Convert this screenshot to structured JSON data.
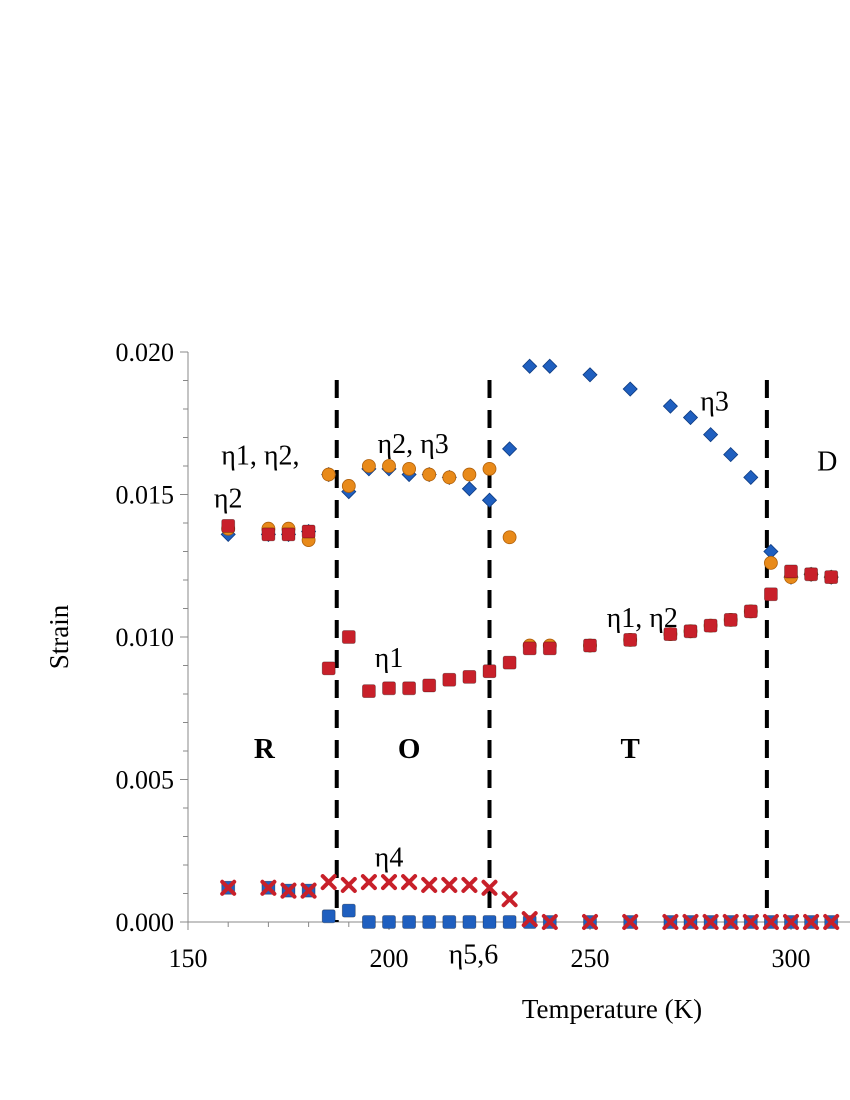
{
  "chart_data": {
    "type": "scatter",
    "xlabel": "Temperature (K)",
    "ylabel": "Strain",
    "xlim": [
      150,
      310
    ],
    "ylim": [
      0,
      0.02
    ],
    "x_ticks": [
      "150",
      "200",
      "250",
      "300"
    ],
    "y_ticks": [
      "0.000",
      "0.005",
      "0.010",
      "0.015",
      "0.020"
    ],
    "grid": false,
    "legend": "none",
    "phase_boundaries": [
      187,
      225,
      294
    ],
    "series": [
      {
        "marker": "diamond",
        "color": "#1f5fbf",
        "points": [
          [
            160,
            0.0136
          ],
          [
            170,
            0.0136
          ],
          [
            175,
            0.0136
          ],
          [
            180,
            0.0137
          ],
          [
            185,
            0.0157
          ],
          [
            190,
            0.0151
          ],
          [
            195,
            0.0159
          ],
          [
            200,
            0.0159
          ],
          [
            205,
            0.0157
          ],
          [
            210,
            0.0157
          ],
          [
            215,
            0.0156
          ],
          [
            220,
            0.0152
          ],
          [
            225,
            0.0148
          ],
          [
            230,
            0.0166
          ],
          [
            235,
            0.0195
          ],
          [
            240,
            0.0195
          ],
          [
            250,
            0.0192
          ],
          [
            260,
            0.0187
          ],
          [
            270,
            0.0181
          ],
          [
            275,
            0.0177
          ],
          [
            280,
            0.0171
          ],
          [
            285,
            0.0164
          ],
          [
            290,
            0.0156
          ],
          [
            295,
            0.013
          ],
          [
            300,
            0.0121
          ],
          [
            305,
            0.0122
          ],
          [
            310,
            0.0121
          ]
        ]
      },
      {
        "marker": "circle",
        "color": "#e88a1a",
        "points": [
          [
            160,
            0.0138
          ],
          [
            170,
            0.0138
          ],
          [
            175,
            0.0138
          ],
          [
            180,
            0.0134
          ],
          [
            185,
            0.0157
          ],
          [
            190,
            0.0153
          ],
          [
            195,
            0.016
          ],
          [
            200,
            0.016
          ],
          [
            205,
            0.0159
          ],
          [
            210,
            0.0157
          ],
          [
            215,
            0.0156
          ],
          [
            220,
            0.0157
          ],
          [
            225,
            0.0159
          ],
          [
            230,
            0.0135
          ],
          [
            235,
            0.0097
          ],
          [
            240,
            0.0097
          ],
          [
            250,
            0.0097
          ],
          [
            260,
            0.0099
          ],
          [
            270,
            0.0101
          ],
          [
            275,
            0.0102
          ],
          [
            280,
            0.0104
          ],
          [
            285,
            0.0106
          ],
          [
            290,
            0.0109
          ],
          [
            295,
            0.0126
          ],
          [
            300,
            0.0121
          ],
          [
            305,
            0.0122
          ],
          [
            310,
            0.0121
          ]
        ]
      },
      {
        "marker": "square",
        "color": "#c8202a",
        "points": [
          [
            160,
            0.0139
          ],
          [
            170,
            0.0136
          ],
          [
            175,
            0.0136
          ],
          [
            180,
            0.0137
          ],
          [
            185,
            0.0089
          ],
          [
            190,
            0.01
          ],
          [
            195,
            0.0081
          ],
          [
            200,
            0.0082
          ],
          [
            205,
            0.0082
          ],
          [
            210,
            0.0083
          ],
          [
            215,
            0.0085
          ],
          [
            220,
            0.0086
          ],
          [
            225,
            0.0088
          ],
          [
            230,
            0.0091
          ],
          [
            235,
            0.0096
          ],
          [
            240,
            0.0096
          ],
          [
            250,
            0.0097
          ],
          [
            260,
            0.0099
          ],
          [
            270,
            0.0101
          ],
          [
            275,
            0.0102
          ],
          [
            280,
            0.0104
          ],
          [
            285,
            0.0106
          ],
          [
            290,
            0.0109
          ],
          [
            295,
            0.0115
          ],
          [
            300,
            0.0123
          ],
          [
            305,
            0.0122
          ],
          [
            310,
            0.0121
          ]
        ]
      },
      {
        "marker": "x",
        "color": "#c8202a",
        "points": [
          [
            160,
            0.0012
          ],
          [
            170,
            0.0012
          ],
          [
            175,
            0.0011
          ],
          [
            180,
            0.0011
          ],
          [
            185,
            0.0014
          ],
          [
            190,
            0.0013
          ],
          [
            195,
            0.0014
          ],
          [
            200,
            0.0014
          ],
          [
            205,
            0.0014
          ],
          [
            210,
            0.0013
          ],
          [
            215,
            0.0013
          ],
          [
            220,
            0.0013
          ],
          [
            225,
            0.0012
          ],
          [
            230,
            0.0008
          ],
          [
            235,
            0.0001
          ],
          [
            240,
            0.0
          ],
          [
            250,
            0.0
          ],
          [
            260,
            0.0
          ],
          [
            270,
            0.0
          ],
          [
            275,
            0.0
          ],
          [
            280,
            0.0
          ],
          [
            285,
            0.0
          ],
          [
            290,
            0.0
          ],
          [
            295,
            0.0
          ],
          [
            300,
            0.0
          ],
          [
            305,
            0.0
          ],
          [
            310,
            0.0
          ]
        ]
      },
      {
        "marker": "square",
        "color": "#1f5fbf",
        "points": [
          [
            160,
            0.0012
          ],
          [
            170,
            0.0012
          ],
          [
            175,
            0.0011
          ],
          [
            180,
            0.0011
          ],
          [
            185,
            0.0002
          ],
          [
            190,
            0.0004
          ],
          [
            195,
            0.0
          ],
          [
            200,
            0.0
          ],
          [
            205,
            0.0
          ],
          [
            210,
            0.0
          ],
          [
            215,
            0.0
          ],
          [
            220,
            0.0
          ],
          [
            225,
            0.0
          ],
          [
            230,
            0.0
          ],
          [
            235,
            0.0
          ],
          [
            240,
            0.0
          ],
          [
            250,
            0.0
          ],
          [
            260,
            0.0
          ],
          [
            270,
            0.0
          ],
          [
            275,
            0.0
          ],
          [
            280,
            0.0
          ],
          [
            285,
            0.0
          ],
          [
            290,
            0.0
          ],
          [
            295,
            0.0
          ],
          [
            300,
            0.0
          ],
          [
            305,
            0.0
          ],
          [
            310,
            0.0
          ]
        ]
      }
    ],
    "annotations": [
      {
        "text": "η1, η2,",
        "x": 168,
        "y": 0.0164
      },
      {
        "text": "η2",
        "x": 160,
        "y": 0.0149
      },
      {
        "text": "η2, η3",
        "x": 206,
        "y": 0.0168
      },
      {
        "text": "η3",
        "x": 281,
        "y": 0.0183
      },
      {
        "text": "η1",
        "x": 200,
        "y": 0.0093
      },
      {
        "text": "η1, η2",
        "x": 263,
        "y": 0.0107
      },
      {
        "text": "η4",
        "x": 200,
        "y": 0.0023
      },
      {
        "text": "η5,6",
        "x": 221,
        "y": -0.0011
      },
      {
        "text": "D",
        "x": 309,
        "y": 0.0162
      }
    ],
    "regions": [
      {
        "text": "R",
        "x": 169,
        "y": 0.0061
      },
      {
        "text": "O",
        "x": 205,
        "y": 0.0061
      },
      {
        "text": "T",
        "x": 260,
        "y": 0.0061
      }
    ]
  }
}
